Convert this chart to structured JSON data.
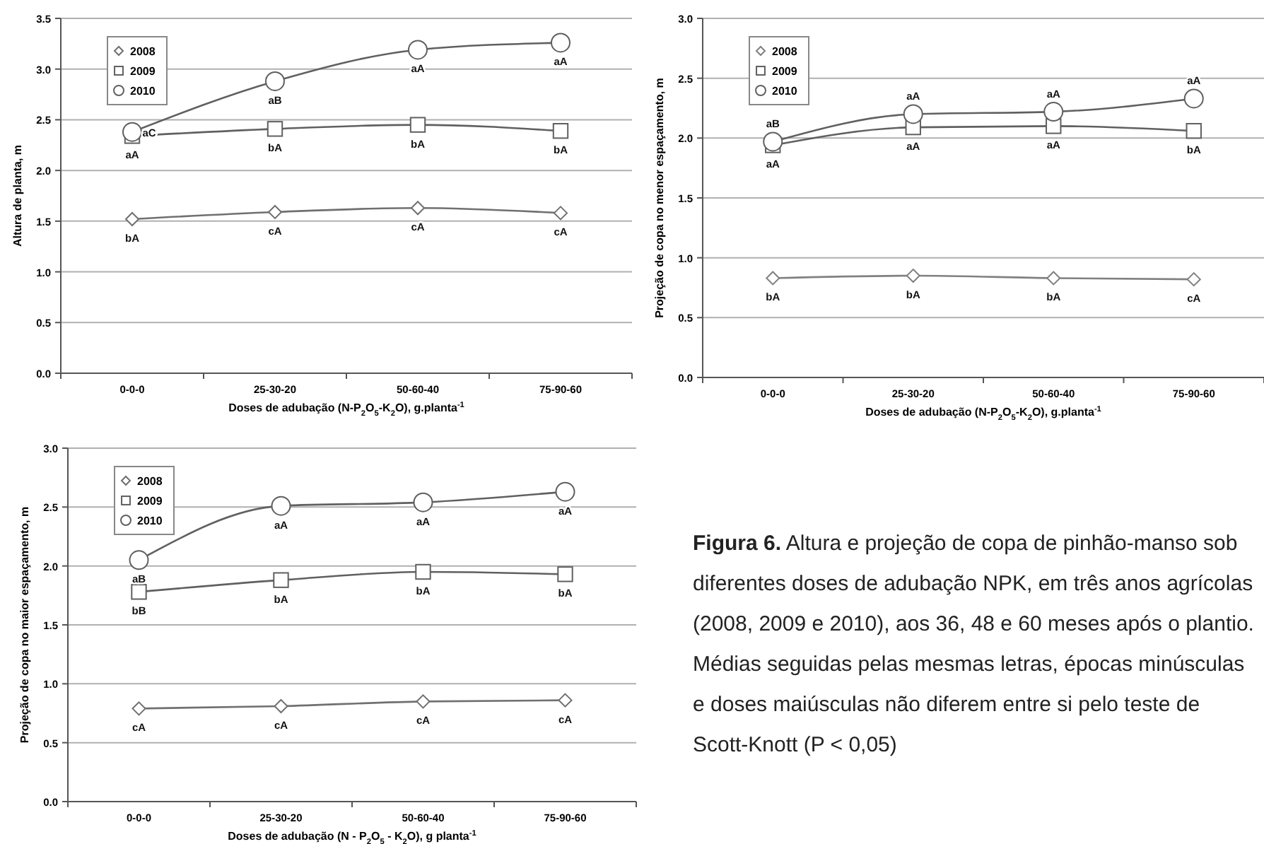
{
  "chart_data": [
    {
      "type": "line",
      "ylabel": "Altura de planta, m",
      "xlabel": "Doses de adubação (N-P$_{2}$O$_{5}$-K$_{2}$O), g.planta$^{-1}$",
      "categories": [
        "0-0-0",
        "25-30-20",
        "50-60-40",
        "75-90-60"
      ],
      "ylim": [
        0,
        3.5
      ],
      "yticks": [
        {
          "value": 0,
          "label": "0.0"
        },
        0.5,
        {
          "value": 1,
          "label": "1.0"
        },
        1.5,
        {
          "value": 2,
          "label": "2.0"
        },
        2.5,
        {
          "value": 3,
          "label": "3.0"
        },
        3.5
      ],
      "grid": "y",
      "legend": "top left",
      "series": [
        {
          "name": "2008",
          "color": "#707070",
          "marker": "diamond",
          "values": [
            1.52,
            1.59,
            1.63,
            1.58
          ],
          "value_labels": [
            "bA",
            "cA",
            "cA",
            "cA"
          ]
        },
        {
          "name": "2009",
          "color": "#606060",
          "marker": "square",
          "values": [
            2.34,
            2.41,
            2.45,
            2.39
          ],
          "value_labels": [
            "aA",
            "bA",
            "bA",
            "bA"
          ]
        },
        {
          "name": "2010",
          "color": "#606060",
          "marker": "circle",
          "values": [
            2.38,
            2.88,
            3.19,
            3.26
          ],
          "value_labels": [
            "aC",
            "aB",
            "aA",
            "aA"
          ]
        }
      ]
    },
    {
      "type": "line",
      "ylabel": "Projeção de copa no menor espaçamento, m",
      "xlabel": "Doses de adubação (N-P$_{2}$O$_{5}$-K$_{2}$O), g.planta$^{-1}$",
      "categories": [
        "0-0-0",
        "25-30-20",
        "50-60-40",
        "75-90-60"
      ],
      "ylim": [
        0,
        3
      ],
      "yticks": [
        {
          "value": 0,
          "label": "0.0"
        },
        0.5,
        {
          "value": 1,
          "label": "1.0"
        },
        1.5,
        {
          "value": 2,
          "label": "2.0"
        },
        2.5,
        {
          "value": 3,
          "label": "3.0"
        }
      ],
      "grid": "y",
      "legend": "top left",
      "series": [
        {
          "name": "2008",
          "color": "#808080",
          "marker": "diamond",
          "values": [
            0.83,
            0.85,
            0.83,
            0.82
          ],
          "value_labels": [
            "bA",
            "bA",
            "bA",
            "cA"
          ]
        },
        {
          "name": "2009",
          "color": "#606060",
          "marker": "square",
          "values": [
            1.94,
            2.09,
            2.1,
            2.06
          ],
          "value_labels": [
            "aA",
            "aA",
            "aA",
            "bA"
          ]
        },
        {
          "name": "2010",
          "color": "#606060",
          "marker": "circle",
          "values": [
            1.97,
            2.2,
            2.22,
            2.33
          ],
          "value_labels": [
            "aB",
            "aA",
            "aA",
            "aA"
          ]
        }
      ]
    },
    {
      "type": "line",
      "ylabel": "Projeção de copa no maior espaçamento, m",
      "xlabel": "Doses de adubação (N - P$_{2}$O$_{5}$ -  K$_{2}$O), g planta$^{-1}$",
      "categories": [
        "0-0-0",
        "25-30-20",
        "50-60-40",
        "75-90-60"
      ],
      "ylim": [
        0,
        3
      ],
      "yticks": [
        {
          "value": 0,
          "label": "0.0"
        },
        0.5,
        {
          "value": 1,
          "label": "1.0"
        },
        1.5,
        {
          "value": 2,
          "label": "2.0"
        },
        2.5,
        {
          "value": 3,
          "label": "3.0"
        }
      ],
      "grid": "y",
      "legend": "top left",
      "series": [
        {
          "name": "2008",
          "color": "#707070",
          "marker": "diamond",
          "values": [
            0.79,
            0.81,
            0.85,
            0.86
          ],
          "value_labels": [
            "cA",
            "cA",
            "cA",
            "cA"
          ]
        },
        {
          "name": "2009",
          "color": "#606060",
          "marker": "square",
          "values": [
            1.78,
            1.88,
            1.95,
            1.93
          ],
          "value_labels": [
            "bB",
            "bA",
            "bA",
            "bA"
          ]
        },
        {
          "name": "2010",
          "color": "#606060",
          "marker": "circle",
          "values": [
            2.05,
            2.51,
            2.54,
            2.63
          ],
          "value_labels": [
            "aB",
            "aA",
            "aA",
            "aA"
          ]
        }
      ],
      "annotations": [
        "Figura 6. Altura e projeção de copa de pinhão-manso sob diferentes doses de adubação NPK, em três anos agrícolas (2008, 2009 e 2010), aos 36, 48 e 60 meses após o plantio. Médias seguidas pelas mesmas letras, épocas minúsculas e doses maiúsculas não diferem entre si pelo teste de Scott-Knott (P < 0,05)"
      ]
    }
  ]
}
